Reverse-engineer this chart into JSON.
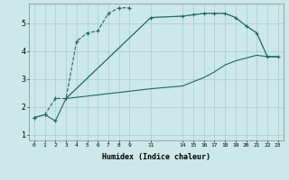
{
  "background_color": "#cce8e8",
  "grid_color": "#aacccc",
  "line_color": "#1a6b5a",
  "xlabel": "Humidex (Indice chaleur)",
  "xlim": [
    -0.5,
    23.5
  ],
  "ylim": [
    0.8,
    5.7
  ],
  "yticks": [
    1,
    2,
    3,
    4,
    5
  ],
  "xticks": [
    0,
    1,
    2,
    3,
    4,
    5,
    6,
    7,
    8,
    9,
    11,
    14,
    15,
    16,
    17,
    18,
    19,
    20,
    21,
    22,
    23
  ],
  "curves": [
    {
      "x": [
        0,
        1,
        2,
        3,
        4,
        5,
        6,
        7,
        8,
        9
      ],
      "y": [
        1.62,
        1.72,
        2.3,
        2.3,
        4.35,
        4.65,
        4.72,
        5.35,
        5.55,
        5.55
      ],
      "linestyle": "--",
      "marker": "+"
    },
    {
      "x": [
        0,
        1,
        2,
        3,
        11,
        14,
        15,
        16,
        17,
        18,
        19,
        20,
        21,
        22,
        23
      ],
      "y": [
        1.62,
        1.72,
        1.5,
        2.3,
        5.2,
        5.25,
        5.3,
        5.35,
        5.35,
        5.35,
        5.2,
        4.9,
        4.65,
        3.8,
        3.8
      ],
      "linestyle": "-",
      "marker": "+"
    },
    {
      "x": [
        3,
        11,
        14,
        15,
        16,
        17,
        18,
        19,
        20,
        21,
        22,
        23
      ],
      "y": [
        2.3,
        5.2,
        5.25,
        5.3,
        5.35,
        5.35,
        5.35,
        5.2,
        4.9,
        4.65,
        3.8,
        3.8
      ],
      "linestyle": ":",
      "marker": null
    },
    {
      "x": [
        3,
        11,
        14,
        15,
        16,
        17,
        18,
        19,
        20,
        21,
        22,
        23
      ],
      "y": [
        2.3,
        2.65,
        2.75,
        2.9,
        3.05,
        3.25,
        3.5,
        3.65,
        3.75,
        3.85,
        3.8,
        3.8
      ],
      "linestyle": "-",
      "marker": null
    }
  ]
}
